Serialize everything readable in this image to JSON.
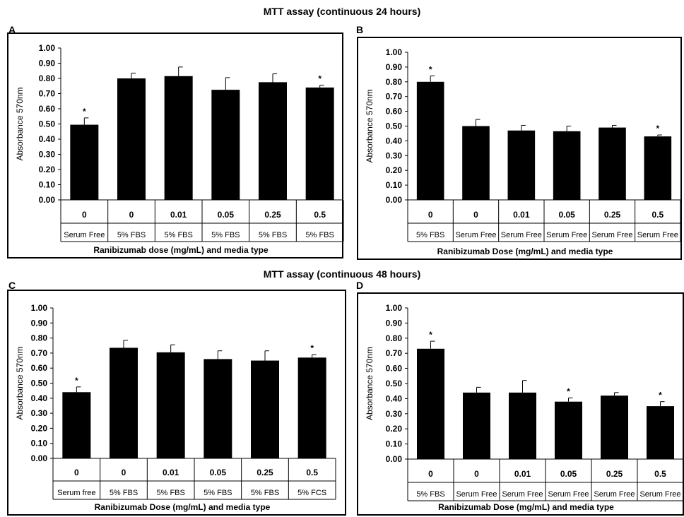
{
  "section_titles": [
    "MTT assay (continuous 24 hours)",
    "MTT assay (continuous 48 hours)"
  ],
  "panel_letters": [
    "A",
    "B",
    "C",
    "D"
  ],
  "chart_data": [
    {
      "type": "bar",
      "panel": "A",
      "title": "",
      "ylabel": "Absorbance 570nm",
      "xlabel": "Ranibizumab dose (mg/mL) and media type",
      "ylim": [
        0,
        1.0
      ],
      "yticks": [
        "0.00",
        "0.10",
        "0.20",
        "0.30",
        "0.40",
        "0.50",
        "0.60",
        "0.70",
        "0.80",
        "0.90",
        "1.00"
      ],
      "grid": false,
      "categories": [
        "0",
        "0",
        "0.01",
        "0.05",
        "0.25",
        "0.5"
      ],
      "media": [
        "Serum Free",
        "5% FBS",
        "5% FBS",
        "5% FBS",
        "5% FBS",
        "5% FBS"
      ],
      "values": [
        0.495,
        0.8,
        0.815,
        0.725,
        0.775,
        0.74
      ],
      "errors": [
        0.045,
        0.035,
        0.06,
        0.08,
        0.055,
        0.015
      ],
      "significance": [
        "*",
        "",
        "",
        "",
        "",
        "*"
      ]
    },
    {
      "type": "bar",
      "panel": "B",
      "title": "",
      "ylabel": "Absorbance 570nm",
      "xlabel": "Ranibizumab Dose (mg/mL)  and media type",
      "ylim": [
        0,
        1.0
      ],
      "yticks": [
        "0.00",
        "0.10",
        "0.20",
        "0.30",
        "0.40",
        "0.50",
        "0.60",
        "0.70",
        "0.80",
        "0.90",
        "1.00"
      ],
      "grid": false,
      "categories": [
        "0",
        "0",
        "0.01",
        "0.05",
        "0.25",
        "0.5"
      ],
      "media": [
        "5% FBS",
        "Serum Free",
        "Serum Free",
        "Serum Free",
        "Serum Free",
        "Serum Free"
      ],
      "values": [
        0.8,
        0.5,
        0.47,
        0.465,
        0.49,
        0.43
      ],
      "errors": [
        0.04,
        0.045,
        0.035,
        0.035,
        0.015,
        0.01
      ],
      "significance": [
        "*",
        "",
        "",
        "",
        "",
        "*"
      ]
    },
    {
      "type": "bar",
      "panel": "C",
      "title": "",
      "ylabel": "Absorbance 570nm",
      "xlabel": "Ranibizumab Dose (mg/mL) and media type",
      "ylim": [
        0,
        1.0
      ],
      "yticks": [
        "0.00",
        "0.10",
        "0.20",
        "0.30",
        "0.40",
        "0.50",
        "0.60",
        "0.70",
        "0.80",
        "0.90",
        "1.00"
      ],
      "grid": false,
      "categories": [
        "0",
        "0",
        "0.01",
        "0.05",
        "0.25",
        "0.5"
      ],
      "media": [
        "Serum free",
        "5% FBS",
        "5% FBS",
        "5% FBS",
        "5% FBS",
        "5% FCS"
      ],
      "values": [
        0.44,
        0.735,
        0.705,
        0.66,
        0.65,
        0.67
      ],
      "errors": [
        0.035,
        0.05,
        0.05,
        0.055,
        0.065,
        0.02
      ],
      "significance": [
        "*",
        "",
        "",
        "",
        "",
        "*"
      ]
    },
    {
      "type": "bar",
      "panel": "D",
      "title": "",
      "ylabel": "Absorbance 570nm",
      "xlabel": "Ranibizumab Dose (mg/mL) and media type",
      "ylim": [
        0,
        1.0
      ],
      "yticks": [
        "0.00",
        "0.10",
        "0.20",
        "0.30",
        "0.40",
        "0.50",
        "0.60",
        "0.70",
        "0.80",
        "0.90",
        "1.00"
      ],
      "grid": false,
      "categories": [
        "0",
        "0",
        "0.01",
        "0.05",
        "0.25",
        "0.5"
      ],
      "media": [
        "5% FBS",
        "Serum Free",
        "Serum Free",
        "Serum Free",
        "Serum Free",
        "Serum Free"
      ],
      "values": [
        0.73,
        0.44,
        0.44,
        0.38,
        0.42,
        0.35
      ],
      "errors": [
        0.05,
        0.035,
        0.08,
        0.025,
        0.02,
        0.03
      ],
      "significance": [
        "*",
        "",
        "",
        "*",
        "",
        "*"
      ]
    }
  ]
}
